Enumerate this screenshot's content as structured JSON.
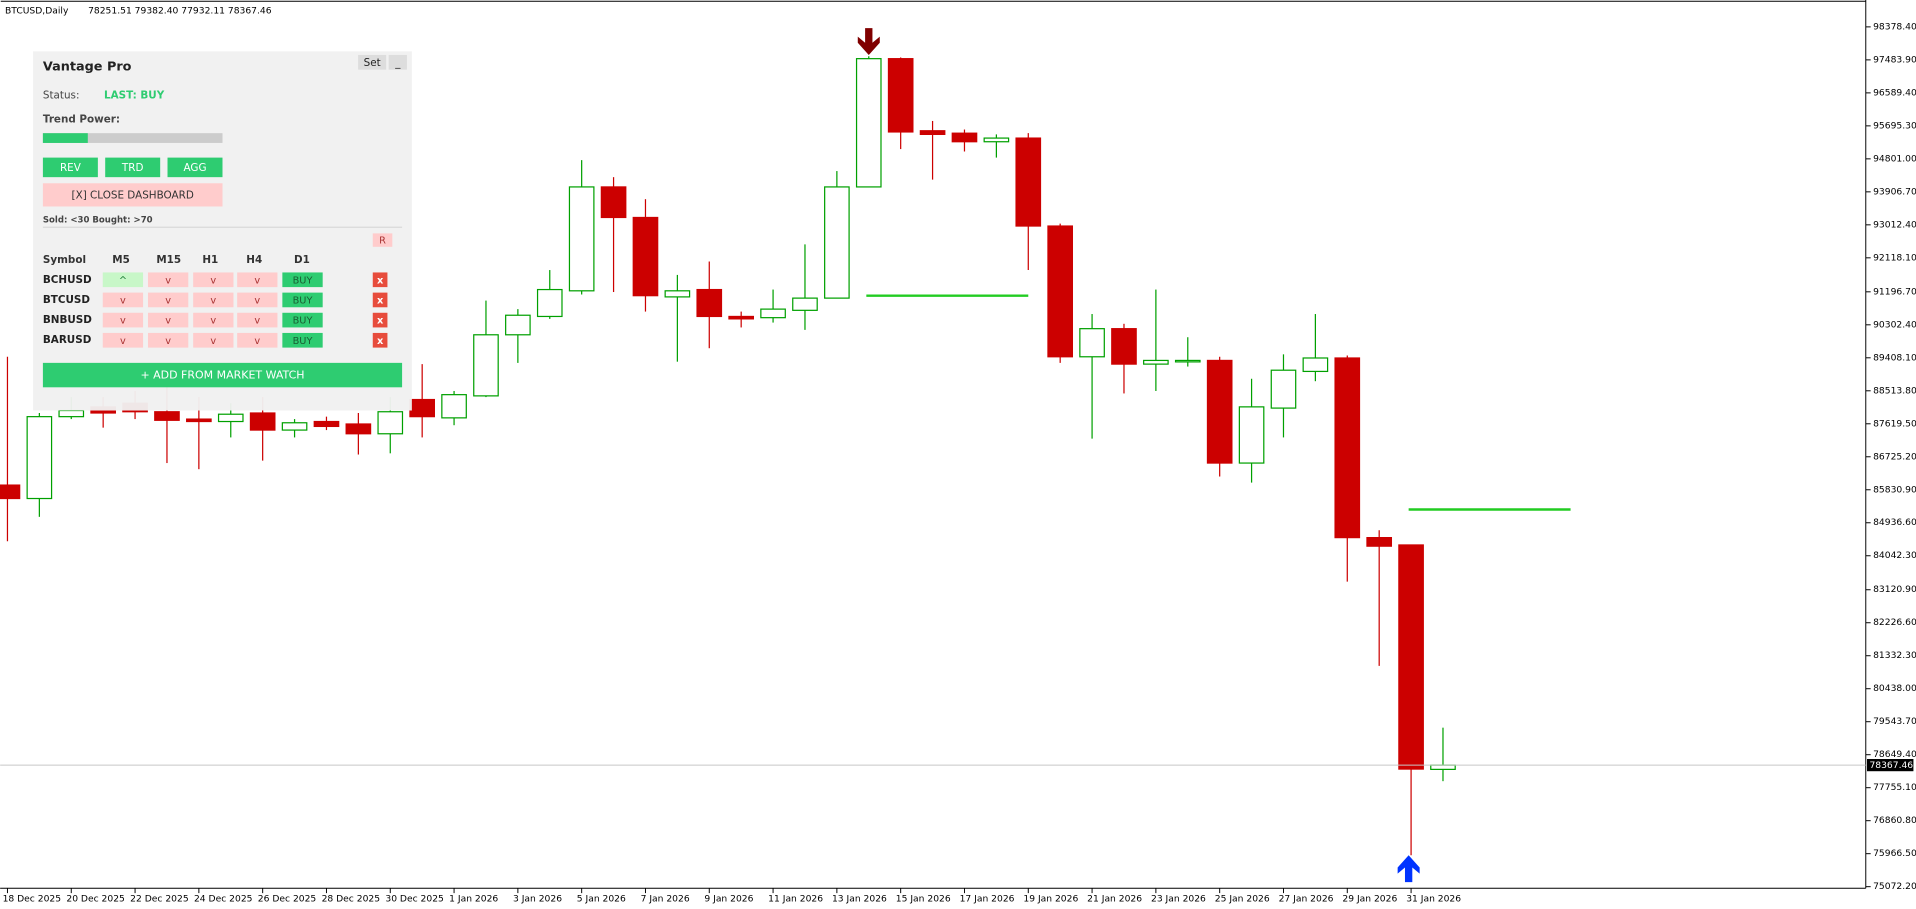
{
  "header": {
    "symbol": "BTCUSD,Daily",
    "ohlc": "78251.51 79382.40 77932.11 78367.46"
  },
  "chart_data": {
    "type": "candlestick",
    "x": [
      "18 Dec 2025",
      null,
      "20 Dec 2025",
      null,
      "22 Dec 2025",
      null,
      "24 Dec 2025",
      null,
      "26 Dec 2025",
      null,
      "28 Dec 2025",
      null,
      "30 Dec 2025",
      null,
      "1 Jan 2026",
      null,
      "3 Jan 2026",
      null,
      "5 Jan 2026",
      null,
      "7 Jan 2026",
      null,
      "9 Jan 2026",
      null,
      "11 Jan 2026",
      null,
      "13 Jan 2026",
      null,
      "15 Jan 2026",
      null,
      "17 Jan 2026",
      null,
      "19 Jan 2026",
      null,
      "21 Jan 2026",
      null,
      "23 Jan 2026",
      null,
      "25 Jan 2026",
      null,
      "27 Jan 2026",
      null,
      "29 Jan 2026",
      null,
      "31 Jan 2026",
      null
    ],
    "open": [
      85958,
      85594,
      87813,
      88078,
      88177,
      87946,
      87747,
      87681,
      87912,
      87449,
      87681,
      87614,
      87349,
      88277,
      87780,
      88376,
      90032,
      90529,
      91224,
      94040,
      93212,
      91059,
      91258,
      90529,
      90496,
      90695,
      91026,
      94040,
      97517,
      95563,
      95497,
      95265,
      95364,
      92980,
      89436,
      90198,
      89237,
      89303,
      89337,
      86555,
      88045,
      89039,
      89403,
      84534,
      84335,
      78251.51
    ],
    "high": [
      89436,
      87912,
      88343,
      88343,
      88509,
      88674,
      88343,
      88177,
      88343,
      87747,
      87813,
      87912,
      88343,
      89237,
      88509,
      90959,
      90728,
      91787,
      94768,
      94305,
      93708,
      91655,
      92019,
      90661,
      91258,
      92483,
      94470,
      97583,
      97550,
      95828,
      95596,
      95464,
      95497,
      93046,
      90595,
      90330,
      91258,
      89966,
      89436,
      88840,
      89502,
      90595,
      89469,
      84733,
      84335,
      79382.4
    ],
    "low": [
      84435,
      85097,
      87747,
      87515,
      87747,
      86555,
      86389,
      87250,
      86621,
      87250,
      87449,
      86786,
      86819,
      87250,
      87581,
      88343,
      89270,
      90463,
      91125,
      91191,
      90661,
      89303,
      89668,
      90231,
      90363,
      90165,
      91026,
      94040,
      95066,
      94238,
      95000,
      94835,
      91787,
      89270,
      87217,
      88442,
      88509,
      89171,
      86190,
      86025,
      87250,
      88774,
      83342,
      81057,
      75923,
      77932.11
    ],
    "close": [
      85594,
      87813,
      87979,
      87912,
      87946,
      87714,
      87681,
      87879,
      87449,
      87647,
      87548,
      87349,
      87946,
      87813,
      88409,
      90032,
      90562,
      91258,
      94040,
      93212,
      91092,
      91224,
      90529,
      90463,
      90728,
      91026,
      94040,
      97517,
      95530,
      95464,
      95265,
      95364,
      92980,
      89436,
      90198,
      89237,
      89337,
      89337,
      86555,
      88078,
      89072,
      89403,
      84534,
      84302,
      78260,
      78367.46
    ],
    "up_color": "#00a000",
    "down_color": "#cc0000",
    "sell_arrows": [
      null,
      null,
      null,
      null,
      null,
      null,
      null,
      null,
      null,
      null,
      null,
      null,
      null,
      null,
      null,
      null,
      null,
      null,
      null,
      null,
      null,
      null,
      null,
      null,
      null,
      null,
      null,
      97617,
      null,
      null,
      null,
      null,
      null,
      null,
      null,
      null,
      null,
      null,
      null,
      null,
      null,
      null,
      null,
      null,
      null,
      null
    ],
    "sell_color": "#800000",
    "buy_arrows": [
      null,
      null,
      null,
      null,
      null,
      null,
      null,
      null,
      null,
      null,
      null,
      null,
      null,
      null,
      null,
      null,
      null,
      null,
      null,
      null,
      null,
      null,
      null,
      null,
      null,
      null,
      null,
      null,
      null,
      null,
      null,
      null,
      null,
      null,
      null,
      null,
      null,
      null,
      null,
      null,
      null,
      null,
      null,
      null,
      75923,
      null
    ],
    "buy_color": "#0033ff",
    "level_lines": [
      [
        null,
        null,
        null,
        null,
        null,
        null,
        null,
        null,
        null,
        null,
        null,
        null,
        null,
        null,
        null,
        null,
        null,
        null,
        null,
        null,
        null,
        null,
        null,
        null,
        null,
        null,
        null,
        91092,
        91092,
        91092,
        91092,
        91092,
        91092,
        null,
        null,
        null,
        null,
        null,
        null,
        null,
        null,
        null,
        null,
        null,
        null,
        null
      ],
      [
        null,
        null,
        null,
        null,
        null,
        null,
        null,
        null,
        null,
        null,
        null,
        null,
        null,
        null,
        null,
        null,
        null,
        null,
        null,
        null,
        null,
        null,
        null,
        null,
        null,
        null,
        null,
        null,
        null,
        null,
        null,
        null,
        null,
        null,
        null,
        null,
        null,
        null,
        null,
        null,
        null,
        null,
        null,
        null,
        85296,
        85296
      ]
    ],
    "level_color": "#22cc22",
    "ylim": [
      75030,
      99107
    ],
    "yticks": [
      {
        "value": 98378.4,
        "label": "98378.40"
      },
      {
        "value": 97483.9,
        "label": "97483.90"
      },
      {
        "value": 96589.4,
        "label": "96589.40"
      },
      {
        "value": 95695.3,
        "label": "95695.30"
      },
      {
        "value": 94801,
        "label": "94801.00"
      },
      {
        "value": 93906.7,
        "label": "93906.70"
      },
      {
        "value": 93012.4,
        "label": "93012.40"
      },
      {
        "value": 92118.1,
        "label": "92118.10"
      },
      {
        "value": 91196.7,
        "label": "91196.70"
      },
      {
        "value": 90302.4,
        "label": "90302.40"
      },
      {
        "value": 89408.1,
        "label": "89408.10"
      },
      {
        "value": 88513.8,
        "label": "88513.80"
      },
      {
        "value": 87619.5,
        "label": "87619.50"
      },
      {
        "value": 86725.2,
        "label": "86725.20"
      },
      {
        "value": 85830.9,
        "label": "85830.90"
      },
      {
        "value": 84936.6,
        "label": "84936.60"
      },
      {
        "value": 84042.3,
        "label": "84042.30"
      },
      {
        "value": 83120.9,
        "label": "83120.90"
      },
      {
        "value": 82226.6,
        "label": "82226.60"
      },
      {
        "value": 81332.3,
        "label": "81332.30"
      },
      {
        "value": 80438,
        "label": "80438.00"
      },
      {
        "value": 79543.7,
        "label": "79543.70"
      },
      {
        "value": 78649.4,
        "label": "78649.40"
      },
      {
        "value": 77755.1,
        "label": "77755.10"
      },
      {
        "value": 76860.8,
        "label": "76860.80"
      },
      {
        "value": 75966.5,
        "label": "75966.50"
      },
      {
        "value": 75072.2,
        "label": "75072.20"
      }
    ],
    "grid": false
  },
  "dashboard": {
    "title": "Vantage Pro",
    "set_button": "Set",
    "minimize_button": "_",
    "status_label": "Status:",
    "status": "LAST: BUY",
    "trend_label": "Trend Power:",
    "trend_power": 25,
    "mode_buttons": [
      "REV",
      "TRD",
      "AGG"
    ],
    "close_button": "[X] CLOSE DASHBOARD",
    "thresholds": "Sold: <30  Bought: >70",
    "reset_button": "R",
    "table": {
      "header": [
        "Symbol",
        "M5",
        "M15",
        "H1",
        "H4",
        "D1"
      ],
      "rows": [
        [
          "BCHUSD",
          "^",
          "v",
          "v",
          "v",
          "BUY"
        ],
        [
          "BTCUSD",
          "v",
          "v",
          "v",
          "v",
          "BUY"
        ],
        [
          "BNBUSD",
          "v",
          "v",
          "v",
          "v",
          "BUY"
        ],
        [
          "BARUSD",
          "v",
          "v",
          "v",
          "v",
          "BUY"
        ]
      ]
    },
    "remove_button": "x",
    "add_button": "+ ADD FROM MARKET WATCH"
  }
}
